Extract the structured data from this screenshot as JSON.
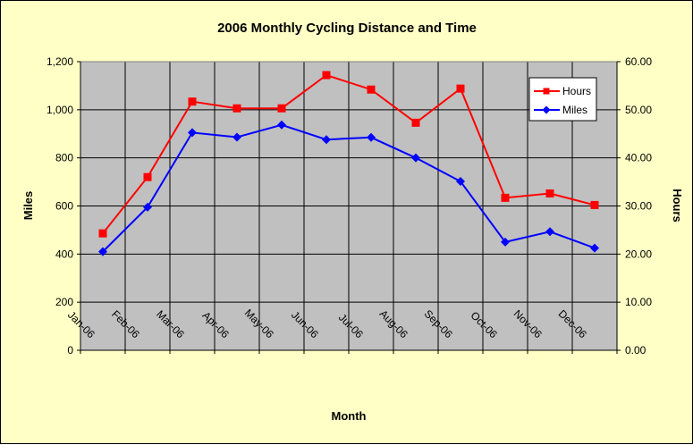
{
  "chart_data": {
    "type": "line",
    "title": "2006 Monthly Cycling Distance and Time",
    "xlabel": "Month",
    "ylabel": "Miles",
    "y2label": "Hours",
    "categories": [
      "Jan-06",
      "Feb-06",
      "Mar-06",
      "Apr-06",
      "May-06",
      "Jun-06",
      "Jul-06",
      "Aug-06",
      "Sep-06",
      "Oct-06",
      "Nov-06",
      "Dec-06"
    ],
    "ylim": [
      0,
      1200
    ],
    "y2lim": [
      0,
      60
    ],
    "yticks": [
      "0",
      "200",
      "400",
      "600",
      "800",
      "1,000",
      "1,200"
    ],
    "y2ticks": [
      "0.00",
      "10.00",
      "20.00",
      "30.00",
      "40.00",
      "50.00",
      "60.00"
    ],
    "grid": true,
    "legend_position": "top-right",
    "series": [
      {
        "name": "Hours",
        "axis": "right",
        "color": "#ff0000",
        "marker": "square",
        "values": [
          24.3,
          36.0,
          51.7,
          50.3,
          50.3,
          57.2,
          54.2,
          47.3,
          54.4,
          31.7,
          32.6,
          30.2
        ]
      },
      {
        "name": "Miles",
        "axis": "left",
        "color": "#0000ff",
        "marker": "diamond",
        "values": [
          410,
          595,
          905,
          886,
          937,
          876,
          885,
          800,
          702,
          450,
          493,
          425
        ]
      }
    ]
  },
  "colors": {
    "background": "#ffffc6",
    "plot_area": "#c0c0c0",
    "grid": "#000000"
  }
}
